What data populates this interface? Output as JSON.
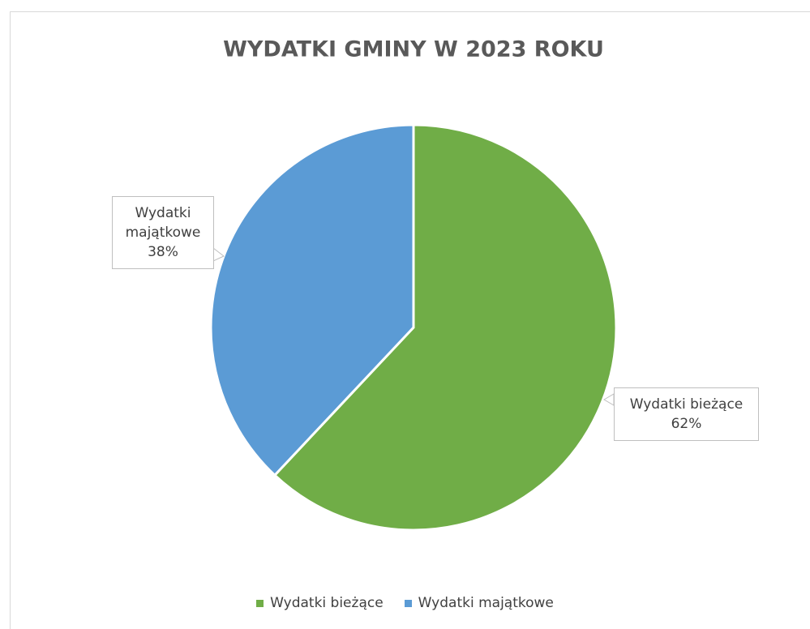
{
  "chart_data": {
    "type": "pie",
    "title": "WYDATKI GMINY W 2023 ROKU",
    "categories": [
      "Wydatki bieżące",
      "Wydatki majątkowe"
    ],
    "values": [
      62,
      38
    ],
    "value_labels": [
      "62%",
      "38%"
    ],
    "colors": [
      "#70ad47",
      "#5b9bd5"
    ],
    "legend": "bottom"
  }
}
